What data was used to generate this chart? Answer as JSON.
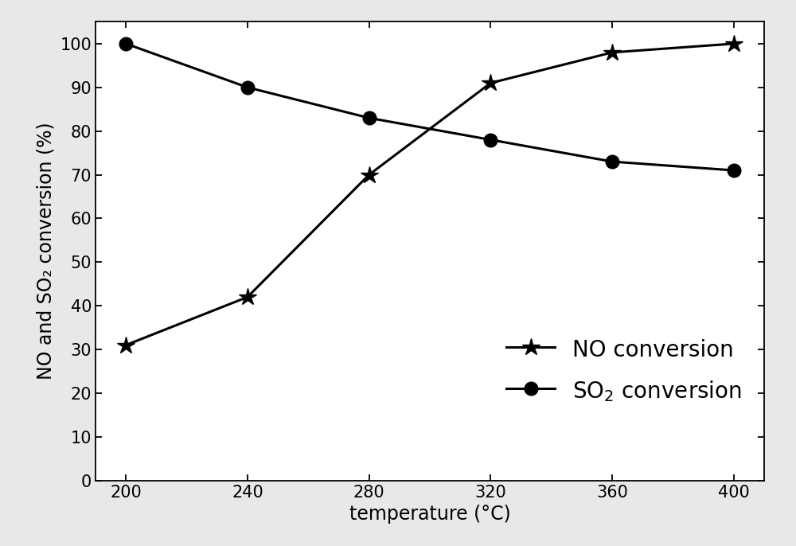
{
  "temperature": [
    200,
    240,
    280,
    320,
    360,
    400
  ],
  "NO_conversion": [
    31,
    42,
    70,
    91,
    98,
    100
  ],
  "SO2_conversion": [
    100,
    90,
    83,
    78,
    73,
    71
  ],
  "xlabel": "temperature (°C)",
  "ylabel": "NO and SO₂ conversion (%)",
  "ylim": [
    0,
    105
  ],
  "yticks": [
    0,
    10,
    20,
    30,
    40,
    50,
    60,
    70,
    80,
    90,
    100
  ],
  "xticks": [
    200,
    240,
    280,
    320,
    360,
    400
  ],
  "line_color": "#000000",
  "marker_NO": "*",
  "marker_SO2": "o",
  "markersize_NO": 16,
  "markersize_SO2": 12,
  "linewidth": 2.2,
  "legend_NO": "NO conversion",
  "legend_SO2": "SO$_2$ conversion",
  "background_color": "#ffffff",
  "outer_background": "#e8e8e8",
  "label_fontsize": 17,
  "tick_fontsize": 15,
  "legend_fontsize": 20
}
